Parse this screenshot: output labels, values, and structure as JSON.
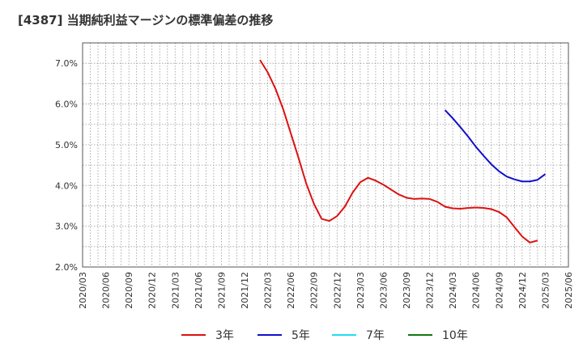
{
  "chart_data": {
    "type": "line",
    "title": "[4387]  当期純利益マージンの標準偏差の推移",
    "xlabel": "",
    "ylabel": "",
    "ylim": [
      2.0,
      7.5
    ],
    "yticks": [
      2.0,
      3.0,
      4.0,
      5.0,
      6.0,
      7.0
    ],
    "ytick_labels": [
      "2.0%",
      "3.0%",
      "4.0%",
      "5.0%",
      "6.0%",
      "7.0%"
    ],
    "x_tick_labels": [
      "2020/03",
      "2020/06",
      "2020/09",
      "2020/12",
      "2021/03",
      "2021/06",
      "2021/09",
      "2021/12",
      "2022/03",
      "2022/06",
      "2022/09",
      "2022/12",
      "2023/03",
      "2023/06",
      "2023/09",
      "2023/12",
      "2024/03",
      "2024/06",
      "2024/09",
      "2024/12",
      "2025/03",
      "2025/06"
    ],
    "grid": true,
    "legend_position": "bottom",
    "series": [
      {
        "name": "3年",
        "color": "#dd1111",
        "x_start": "2022/02",
        "values": [
          7.08,
          6.78,
          6.38,
          5.88,
          5.28,
          4.68,
          4.05,
          3.55,
          3.18,
          3.13,
          3.25,
          3.48,
          3.82,
          4.08,
          4.19,
          4.12,
          4.02,
          3.9,
          3.78,
          3.7,
          3.67,
          3.68,
          3.67,
          3.6,
          3.48,
          3.44,
          3.43,
          3.45,
          3.46,
          3.45,
          3.42,
          3.35,
          3.22,
          2.98,
          2.75,
          2.6,
          2.65
        ]
      },
      {
        "name": "5年",
        "color": "#1010cc",
        "x_start": "2024/02",
        "values": [
          5.85,
          5.65,
          5.43,
          5.2,
          4.95,
          4.73,
          4.52,
          4.35,
          4.22,
          4.15,
          4.1,
          4.1,
          4.14,
          4.28
        ]
      },
      {
        "name": "7年",
        "color": "#22ddee",
        "x_start": "",
        "values": []
      },
      {
        "name": "10年",
        "color": "#117711",
        "x_start": "",
        "values": []
      }
    ]
  }
}
